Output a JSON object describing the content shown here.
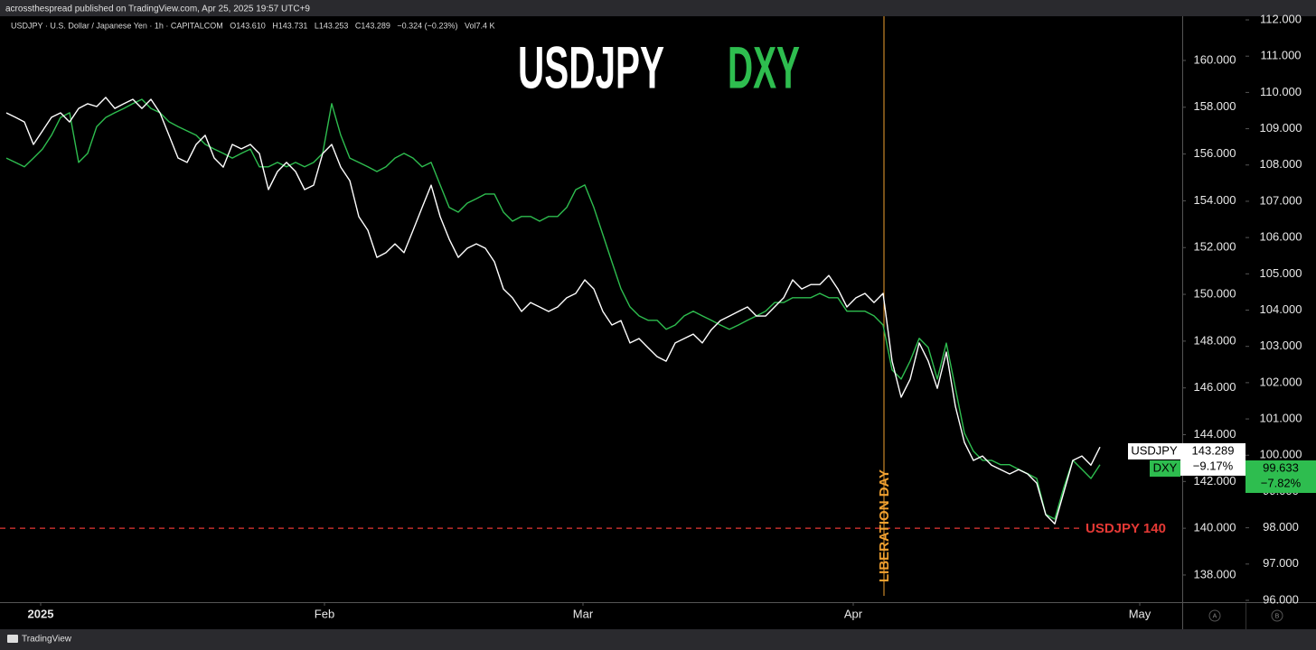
{
  "page_header": "acrossthespread published on TradingView.com, Apr 25, 2025 19:57 UTC+9",
  "footer_brand": "TradingView",
  "chart_data": {
    "type": "line",
    "symbol_line": "USDJPY · U.S. Dollar / Japanese Yen · 1h · CAPITALCOM   O143.610   H143.731   L143.253   C143.289   −0.324 (−0.23%)   Vol7.4 K",
    "titles": [
      {
        "text": "USDJPY",
        "color": "#ffffff"
      },
      {
        "text": "DXY",
        "color": "#2ebd4f"
      }
    ],
    "xlim": [
      -0.7,
      130.1
    ],
    "xticks": [
      {
        "value": 3.8,
        "label": "2025"
      },
      {
        "value": 35.2,
        "label": "Feb"
      },
      {
        "value": 63.8,
        "label": "Mar"
      },
      {
        "value": 93.7,
        "label": "Apr"
      },
      {
        "value": 125.4,
        "label": "May"
      }
    ],
    "ylim": [
      136.84,
      161.89
    ],
    "yticks": [
      {
        "value": 138,
        "label": "138.000"
      },
      {
        "value": 140,
        "label": "140.000"
      },
      {
        "value": 142,
        "label": "142.000"
      },
      {
        "value": 144,
        "label": "144.000"
      },
      {
        "value": 146,
        "label": "146.000"
      },
      {
        "value": 148,
        "label": "148.000"
      },
      {
        "value": 150,
        "label": "150.000"
      },
      {
        "value": 152,
        "label": "152.000"
      },
      {
        "value": 154,
        "label": "154.000"
      },
      {
        "value": 156,
        "label": "156.000"
      },
      {
        "value": 158,
        "label": "158.000"
      },
      {
        "value": 160,
        "label": "160.000"
      }
    ],
    "y2lim": [
      95.95,
      112.1
    ],
    "y2ticks": [
      {
        "value": 96,
        "label": "96.000"
      },
      {
        "value": 97,
        "label": "97.000"
      },
      {
        "value": 98,
        "label": "98.000"
      },
      {
        "value": 99,
        "label": "99.000"
      },
      {
        "value": 100,
        "label": "100.000"
      },
      {
        "value": 101,
        "label": "101.000"
      },
      {
        "value": 102,
        "label": "102.000"
      },
      {
        "value": 103,
        "label": "103.000"
      },
      {
        "value": 104,
        "label": "104.000"
      },
      {
        "value": 105,
        "label": "105.000"
      },
      {
        "value": 106,
        "label": "106.000"
      },
      {
        "value": 107,
        "label": "107.000"
      },
      {
        "value": 108,
        "label": "108.000"
      },
      {
        "value": 109,
        "label": "109.000"
      },
      {
        "value": 110,
        "label": "110.000"
      },
      {
        "value": 111,
        "label": "111.000"
      },
      {
        "value": 112,
        "label": "112.000"
      }
    ],
    "grid": false,
    "series": [
      {
        "name": "USDJPY",
        "color": "#ffffff",
        "axis": "y",
        "last_price": 143.289,
        "last_change": "−9.17%",
        "values": [
          157.76,
          157.57,
          157.37,
          156.41,
          156.99,
          157.57,
          157.76,
          157.37,
          157.95,
          158.15,
          158.03,
          158.42,
          157.95,
          158.15,
          158.34,
          157.95,
          158.34,
          157.76,
          156.8,
          155.83,
          155.64,
          156.41,
          156.8,
          155.83,
          155.44,
          156.41,
          156.22,
          156.41,
          156.02,
          154.48,
          155.25,
          155.64,
          155.25,
          154.48,
          154.67,
          156.02,
          156.41,
          155.44,
          154.86,
          153.32,
          152.74,
          151.58,
          151.78,
          152.16,
          151.78,
          152.74,
          153.71,
          154.67,
          153.32,
          152.36,
          151.58,
          151.97,
          152.16,
          151.97,
          151.39,
          150.23,
          149.85,
          149.27,
          149.65,
          149.46,
          149.27,
          149.46,
          149.85,
          150.04,
          150.62,
          150.23,
          149.27,
          148.69,
          148.88,
          147.92,
          148.11,
          147.72,
          147.34,
          147.14,
          147.92,
          148.11,
          148.3,
          147.92,
          148.49,
          148.88,
          149.07,
          149.27,
          149.46,
          149.07,
          149.07,
          149.46,
          149.85,
          150.62,
          150.23,
          150.42,
          150.42,
          150.81,
          150.23,
          149.46,
          149.85,
          150.04,
          149.65,
          150.04,
          147.14,
          145.6,
          146.37,
          147.92,
          147.14,
          145.98,
          147.53,
          145.21,
          143.67,
          142.9,
          143.09,
          142.7,
          142.51,
          142.32,
          142.51,
          142.32,
          141.93,
          140.58,
          140.19,
          141.54,
          142.9,
          143.09,
          142.7,
          143.47
        ]
      },
      {
        "name": "DXY",
        "color": "#2ebd4f",
        "axis": "y2",
        "last_price": 99.633,
        "last_change": "−7.82%",
        "values": [
          108.19,
          108.07,
          107.95,
          108.19,
          108.44,
          108.82,
          109.31,
          109.44,
          108.07,
          108.32,
          109.06,
          109.31,
          109.44,
          109.56,
          109.69,
          109.81,
          109.56,
          109.44,
          109.19,
          109.06,
          108.94,
          108.82,
          108.57,
          108.44,
          108.32,
          108.19,
          108.32,
          108.44,
          107.95,
          107.95,
          108.07,
          107.95,
          108.07,
          107.95,
          108.07,
          108.32,
          109.69,
          108.82,
          108.19,
          108.07,
          107.95,
          107.82,
          107.95,
          108.19,
          108.32,
          108.19,
          107.95,
          108.07,
          107.45,
          106.83,
          106.7,
          106.95,
          107.07,
          107.2,
          107.2,
          106.7,
          106.45,
          106.58,
          106.58,
          106.45,
          106.58,
          106.58,
          106.83,
          107.32,
          107.45,
          106.83,
          106.08,
          105.33,
          104.59,
          104.09,
          103.84,
          103.72,
          103.72,
          103.47,
          103.59,
          103.84,
          103.97,
          103.84,
          103.72,
          103.59,
          103.47,
          103.59,
          103.72,
          103.84,
          103.97,
          104.21,
          104.21,
          104.34,
          104.34,
          104.34,
          104.46,
          104.34,
          104.34,
          103.97,
          103.97,
          103.97,
          103.84,
          103.59,
          102.35,
          102.1,
          102.6,
          103.22,
          102.97,
          102.1,
          103.09,
          101.85,
          100.61,
          100.11,
          99.86,
          99.86,
          99.74,
          99.74,
          99.61,
          99.49,
          99.36,
          98.37,
          98.24,
          99.11,
          99.86,
          99.61,
          99.36,
          99.74
        ]
      }
    ],
    "vline": {
      "x": 97.1,
      "label": "LIBERATION DAY",
      "color": "#f0a030"
    },
    "hline": {
      "y": 140,
      "label": "USDJPY 140",
      "color": "#e53935"
    },
    "scale_buttons": [
      "A",
      "B"
    ]
  }
}
